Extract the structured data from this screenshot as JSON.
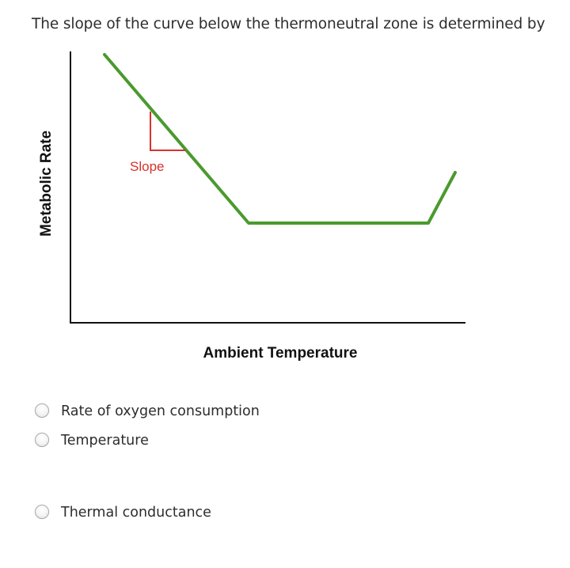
{
  "question": {
    "text": "The slope of the curve below the thermoneutral zone is determined by"
  },
  "figure": {
    "y_axis_label": "Metabolic Rate",
    "x_axis_label": "Ambient Temperature",
    "slope_label": "Slope",
    "colors": {
      "curve": "#4a9a2e",
      "slope_marker": "#d9312b",
      "slope_text": "#d9312b",
      "axis": "#111111",
      "label": "#111111"
    }
  },
  "options": [
    {
      "label": "Rate of oxygen consumption",
      "selected": false
    },
    {
      "label": "Temperature",
      "selected": false
    },
    {
      "label": "Thermal conductance",
      "selected": false
    }
  ]
}
